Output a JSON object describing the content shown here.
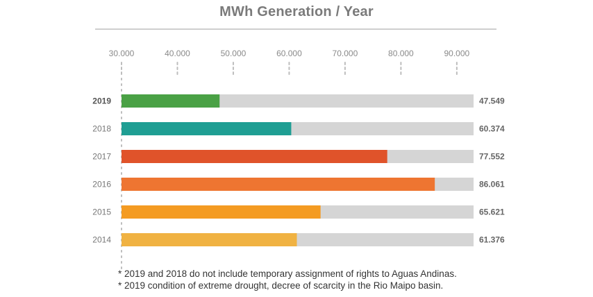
{
  "chart_data": {
    "type": "bar",
    "orientation": "horizontal",
    "title": "MWh Generation / Year",
    "categories": [
      "2019",
      "2018",
      "2017",
      "2016",
      "2015",
      "2014"
    ],
    "values": [
      47549,
      60374,
      77552,
      86061,
      65621,
      61376
    ],
    "value_labels": [
      "47.549",
      "60.374",
      "77.552",
      "86.061",
      "65.621",
      "61.376"
    ],
    "bar_colors": [
      "#4aa145",
      "#1f9e93",
      "#e0532a",
      "#ee7531",
      "#f49b22",
      "#f0b242"
    ],
    "track_color": "#d5d5d5",
    "x_ticks": [
      30000,
      40000,
      50000,
      60000,
      70000,
      80000,
      90000
    ],
    "x_tick_labels": [
      "30.000",
      "40.000",
      "50.000",
      "60.000",
      "70.000",
      "80.000",
      "90.000"
    ],
    "xlim": [
      30000,
      93000
    ],
    "highlight_category": "2019",
    "xlabel": "",
    "ylabel": ""
  },
  "notes": [
    "* 2019 and 2018 do not include temporary assignment of rights to Aguas Andinas.",
    "* 2019 condition of extreme drought, decree of scarcity in the Rio Maipo basin."
  ]
}
